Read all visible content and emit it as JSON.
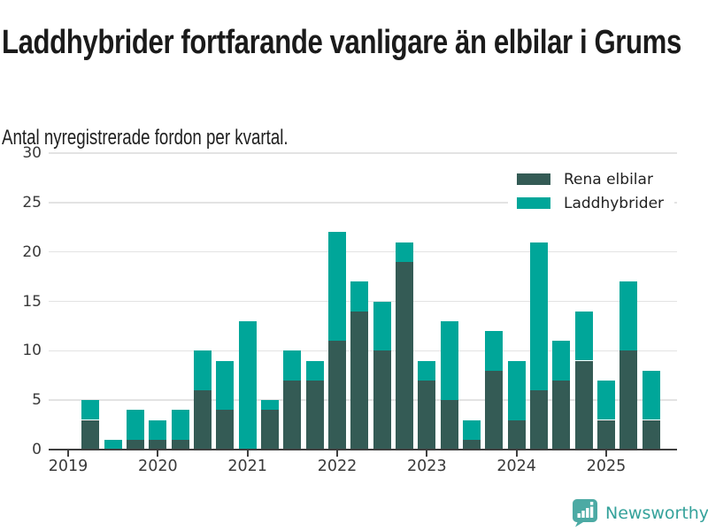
{
  "header": {
    "title": "Laddhybrider fortfarande vanligare än elbilar i Grums",
    "subtitle": "Antal nyregistrerade fordon per kvartal."
  },
  "colors": {
    "electric": "#345b55",
    "hybrid": "#00a699",
    "grid": "#e3e3e3",
    "axis": "#3f3f3f",
    "tick_text": "#3a3a3a",
    "title_text": "#1a1a1a",
    "logo_icon": "#4caaa4",
    "logo_text": "#35a29b"
  },
  "chart_data": {
    "type": "bar",
    "stacked": true,
    "title": "Laddhybrider fortfarande vanligare än elbilar i Grums",
    "subtitle": "Antal nyregistrerade fordon per kvartal.",
    "categories": [
      "2019 Q1",
      "2019 Q2",
      "2019 Q3",
      "2019 Q4",
      "2020 Q1",
      "2020 Q2",
      "2020 Q3",
      "2020 Q4",
      "2021 Q1",
      "2021 Q2",
      "2021 Q3",
      "2021 Q4",
      "2022 Q1",
      "2022 Q2",
      "2022 Q3",
      "2022 Q4",
      "2023 Q1",
      "2023 Q2",
      "2023 Q3",
      "2023 Q4",
      "2024 Q1",
      "2024 Q2",
      "2024 Q3",
      "2024 Q4",
      "2025 Q1",
      "2025 Q2",
      "2025 Q3"
    ],
    "series": [
      {
        "name": "Rena elbilar",
        "color_key": "electric",
        "values": [
          0,
          3,
          0,
          1,
          1,
          1,
          6,
          4,
          0,
          4,
          7,
          7,
          11,
          14,
          10,
          19,
          7,
          5,
          1,
          8,
          3,
          6,
          7,
          9,
          3,
          10,
          3
        ]
      },
      {
        "name": "Laddhybrider",
        "color_key": "hybrid",
        "values": [
          0,
          2,
          1,
          3,
          2,
          3,
          4,
          5,
          13,
          1,
          3,
          2,
          11,
          3,
          5,
          2,
          2,
          8,
          2,
          4,
          6,
          15,
          4,
          5,
          4,
          7,
          5
        ]
      }
    ],
    "totals": [
      0,
      5,
      1,
      4,
      3,
      4,
      10,
      9,
      13,
      5,
      10,
      9,
      22,
      17,
      15,
      21,
      9,
      13,
      3,
      12,
      9,
      21,
      11,
      14,
      7,
      17,
      8
    ],
    "xlabel": "",
    "ylabel": "",
    "ylim": [
      0,
      30
    ],
    "yticks": [
      0,
      5,
      10,
      15,
      20,
      25,
      30
    ],
    "year_labels": [
      "2019",
      "2020",
      "2021",
      "2022",
      "2023",
      "2024",
      "2025"
    ],
    "grid": true,
    "legend_position": "top-right"
  },
  "footer": {
    "brand": "Newsworthy",
    "logo_icon_name": "newsworthy-bar-chart-bubble-icon"
  }
}
